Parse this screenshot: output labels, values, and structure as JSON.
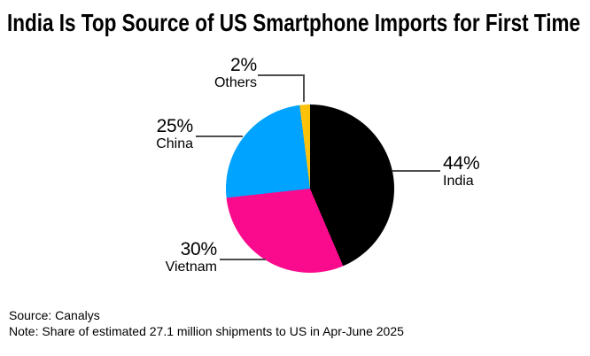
{
  "title": "India Is Top Source of US Smartphone Imports for First Time",
  "footer": {
    "source": "Source: Canalys",
    "note": "Note: Share of estimated 27.1 million shipments to US in Apr-June 2025"
  },
  "chart_data": {
    "type": "pie",
    "title": "India Is Top Source of US Smartphone Imports for First Time",
    "start_angle_deg": 0,
    "direction": "clockwise",
    "legend_position": "none",
    "labels_style": "outside callout labels with leader lines",
    "slices": [
      {
        "label": "India",
        "value_pct": 44,
        "pct_label": "44%",
        "color": "#000000"
      },
      {
        "label": "Vietnam",
        "value_pct": 30,
        "pct_label": "30%",
        "color": "#FA0A8C"
      },
      {
        "label": "China",
        "value_pct": 25,
        "pct_label": "25%",
        "color": "#00A3FF"
      },
      {
        "label": "Others",
        "value_pct": 2,
        "pct_label": "2%",
        "color": "#FFC20A"
      }
    ],
    "source": "Canalys",
    "note": "Share of estimated 27.1 million shipments to US in Apr-June 2025"
  },
  "colors": {
    "background": "#FFFFFF",
    "text": "#000000",
    "leader_line": "#4D4D4F"
  }
}
